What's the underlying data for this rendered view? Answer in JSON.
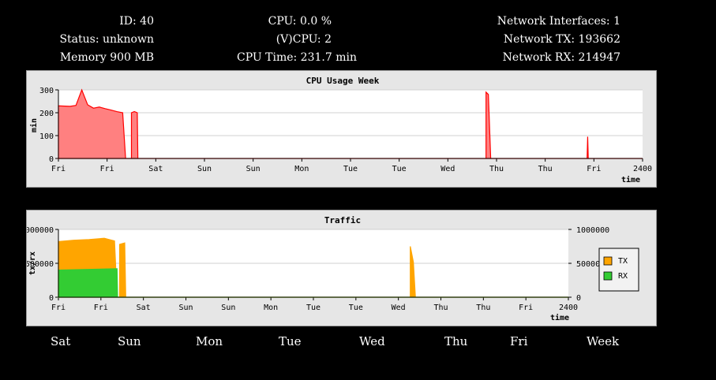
{
  "stats": {
    "id": "ID: 40",
    "status": "Status: unknown",
    "memory": "Memory 900 MB",
    "cpu": "CPU: 0.0 %",
    "vcpu": "(V)CPU: 2",
    "cpu_time": "CPU Time: 231.7 min",
    "net_if": "Network Interfaces: 1",
    "net_tx": "Network TX: 193662",
    "net_rx": "Network RX: 214947"
  },
  "colors": {
    "cpu": "#ff0000",
    "cpu_fill": "#ff8080",
    "tx": "#ffa500",
    "rx": "#33cc33"
  },
  "chart_data": [
    {
      "type": "area",
      "title": "CPU Usage Week",
      "ylabel": "min",
      "xlabel": "time",
      "ylim": [
        0,
        300
      ],
      "yticks": [
        "300",
        "200",
        "100",
        "0"
      ],
      "xticks": [
        "Fri",
        "Fri",
        "Sat",
        "Sun",
        "Sun",
        "Mon",
        "Tue",
        "Tue",
        "Wed",
        "Thu",
        "Thu",
        "Fri",
        "2400"
      ],
      "grid": true,
      "series": [
        {
          "values": [
            [
              0,
              0
            ],
            [
              0,
              230
            ],
            [
              2,
              228
            ],
            [
              3,
              232
            ],
            [
              4,
              300
            ],
            [
              5,
              235
            ],
            [
              6,
              220
            ],
            [
              7,
              225
            ],
            [
              8,
              218
            ],
            [
              9,
              212
            ],
            [
              10,
              205
            ],
            [
              11,
              200
            ],
            [
              11.5,
              0
            ],
            [
              12.5,
              0
            ],
            [
              12.5,
              200
            ],
            [
              13,
              205
            ],
            [
              13.5,
              200
            ],
            [
              13.6,
              0
            ],
            [
              73.2,
              0
            ],
            [
              73.2,
              290
            ],
            [
              73.6,
              280
            ],
            [
              74,
              0
            ],
            [
              90.5,
              0
            ],
            [
              90.6,
              95
            ],
            [
              90.7,
              0
            ],
            [
              100,
              0
            ]
          ]
        }
      ]
    },
    {
      "type": "area",
      "title": "Traffic",
      "ylabel": "tx/rx",
      "xlabel": "time",
      "ylim": [
        0,
        1000000
      ],
      "yticks": [
        "1000000",
        "500000",
        "0"
      ],
      "yticks_right": [
        "1000000",
        "500000",
        "0"
      ],
      "xticks": [
        "Fri",
        "Fri",
        "Sat",
        "Sun",
        "Sun",
        "Mon",
        "Tue",
        "Tue",
        "Wed",
        "Thu",
        "Thu",
        "Fri",
        "2400"
      ],
      "grid": true,
      "legend": {
        "position": "right",
        "labels": [
          "TX",
          "RX"
        ]
      },
      "series": [
        {
          "name": "TX",
          "values": [
            [
              0,
              0
            ],
            [
              0,
              820000
            ],
            [
              3,
              840000
            ],
            [
              6,
              850000
            ],
            [
              9,
              870000
            ],
            [
              10,
              850000
            ],
            [
              11,
              830000
            ],
            [
              11.5,
              0
            ],
            [
              12,
              0
            ],
            [
              12,
              780000
            ],
            [
              13,
              800000
            ],
            [
              13.2,
              0
            ],
            [
              69,
              0
            ],
            [
              69,
              750000
            ],
            [
              69.6,
              520000
            ],
            [
              70,
              0
            ],
            [
              100,
              0
            ]
          ]
        },
        {
          "name": "RX",
          "values": [
            [
              0,
              0
            ],
            [
              0,
              400000
            ],
            [
              11.5,
              420000
            ],
            [
              11.6,
              0
            ],
            [
              100,
              0
            ]
          ]
        }
      ]
    }
  ],
  "bottom_days": [
    "Sat",
    "Sun",
    "Mon",
    "Tue",
    "Wed",
    "Thu",
    "Fri",
    "Week"
  ]
}
